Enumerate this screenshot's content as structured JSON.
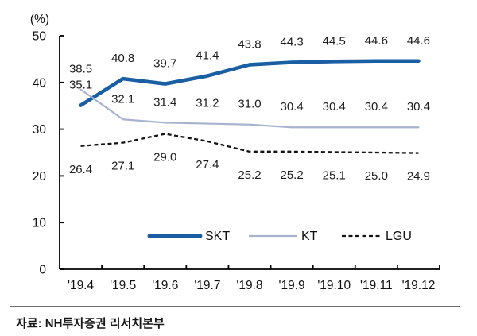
{
  "chart_data": {
    "type": "line",
    "title": "",
    "unit_label": "(%)",
    "x": [
      "'19.4",
      "'19.5",
      "'19.6",
      "'19.7",
      "'19.8",
      "'19.9",
      "'19.10",
      "'19.11",
      "'19.12"
    ],
    "series": [
      {
        "name": "SKT",
        "values": [
          35.1,
          40.8,
          39.7,
          41.4,
          43.8,
          44.3,
          44.5,
          44.6,
          44.6
        ],
        "color": "#1a5ea3",
        "style": "solid-thick",
        "label_position": "above"
      },
      {
        "name": "KT",
        "values": [
          38.5,
          32.1,
          31.4,
          31.2,
          31.0,
          30.4,
          30.4,
          30.4,
          30.4
        ],
        "color": "#a8b4cf",
        "style": "solid-thin",
        "label_position": "above"
      },
      {
        "name": "LGU",
        "values": [
          26.4,
          27.1,
          29.0,
          27.4,
          25.2,
          25.2,
          25.1,
          25.0,
          24.9
        ],
        "color": "#141414",
        "style": "dashed",
        "label_position": "below"
      }
    ],
    "ylim": [
      0,
      50
    ],
    "yticks": [
      0,
      10,
      20,
      30,
      40,
      50
    ],
    "legend_position": "bottom-center",
    "grid": false
  },
  "source": {
    "text": "자료: NH투자증권 리서치본부"
  }
}
